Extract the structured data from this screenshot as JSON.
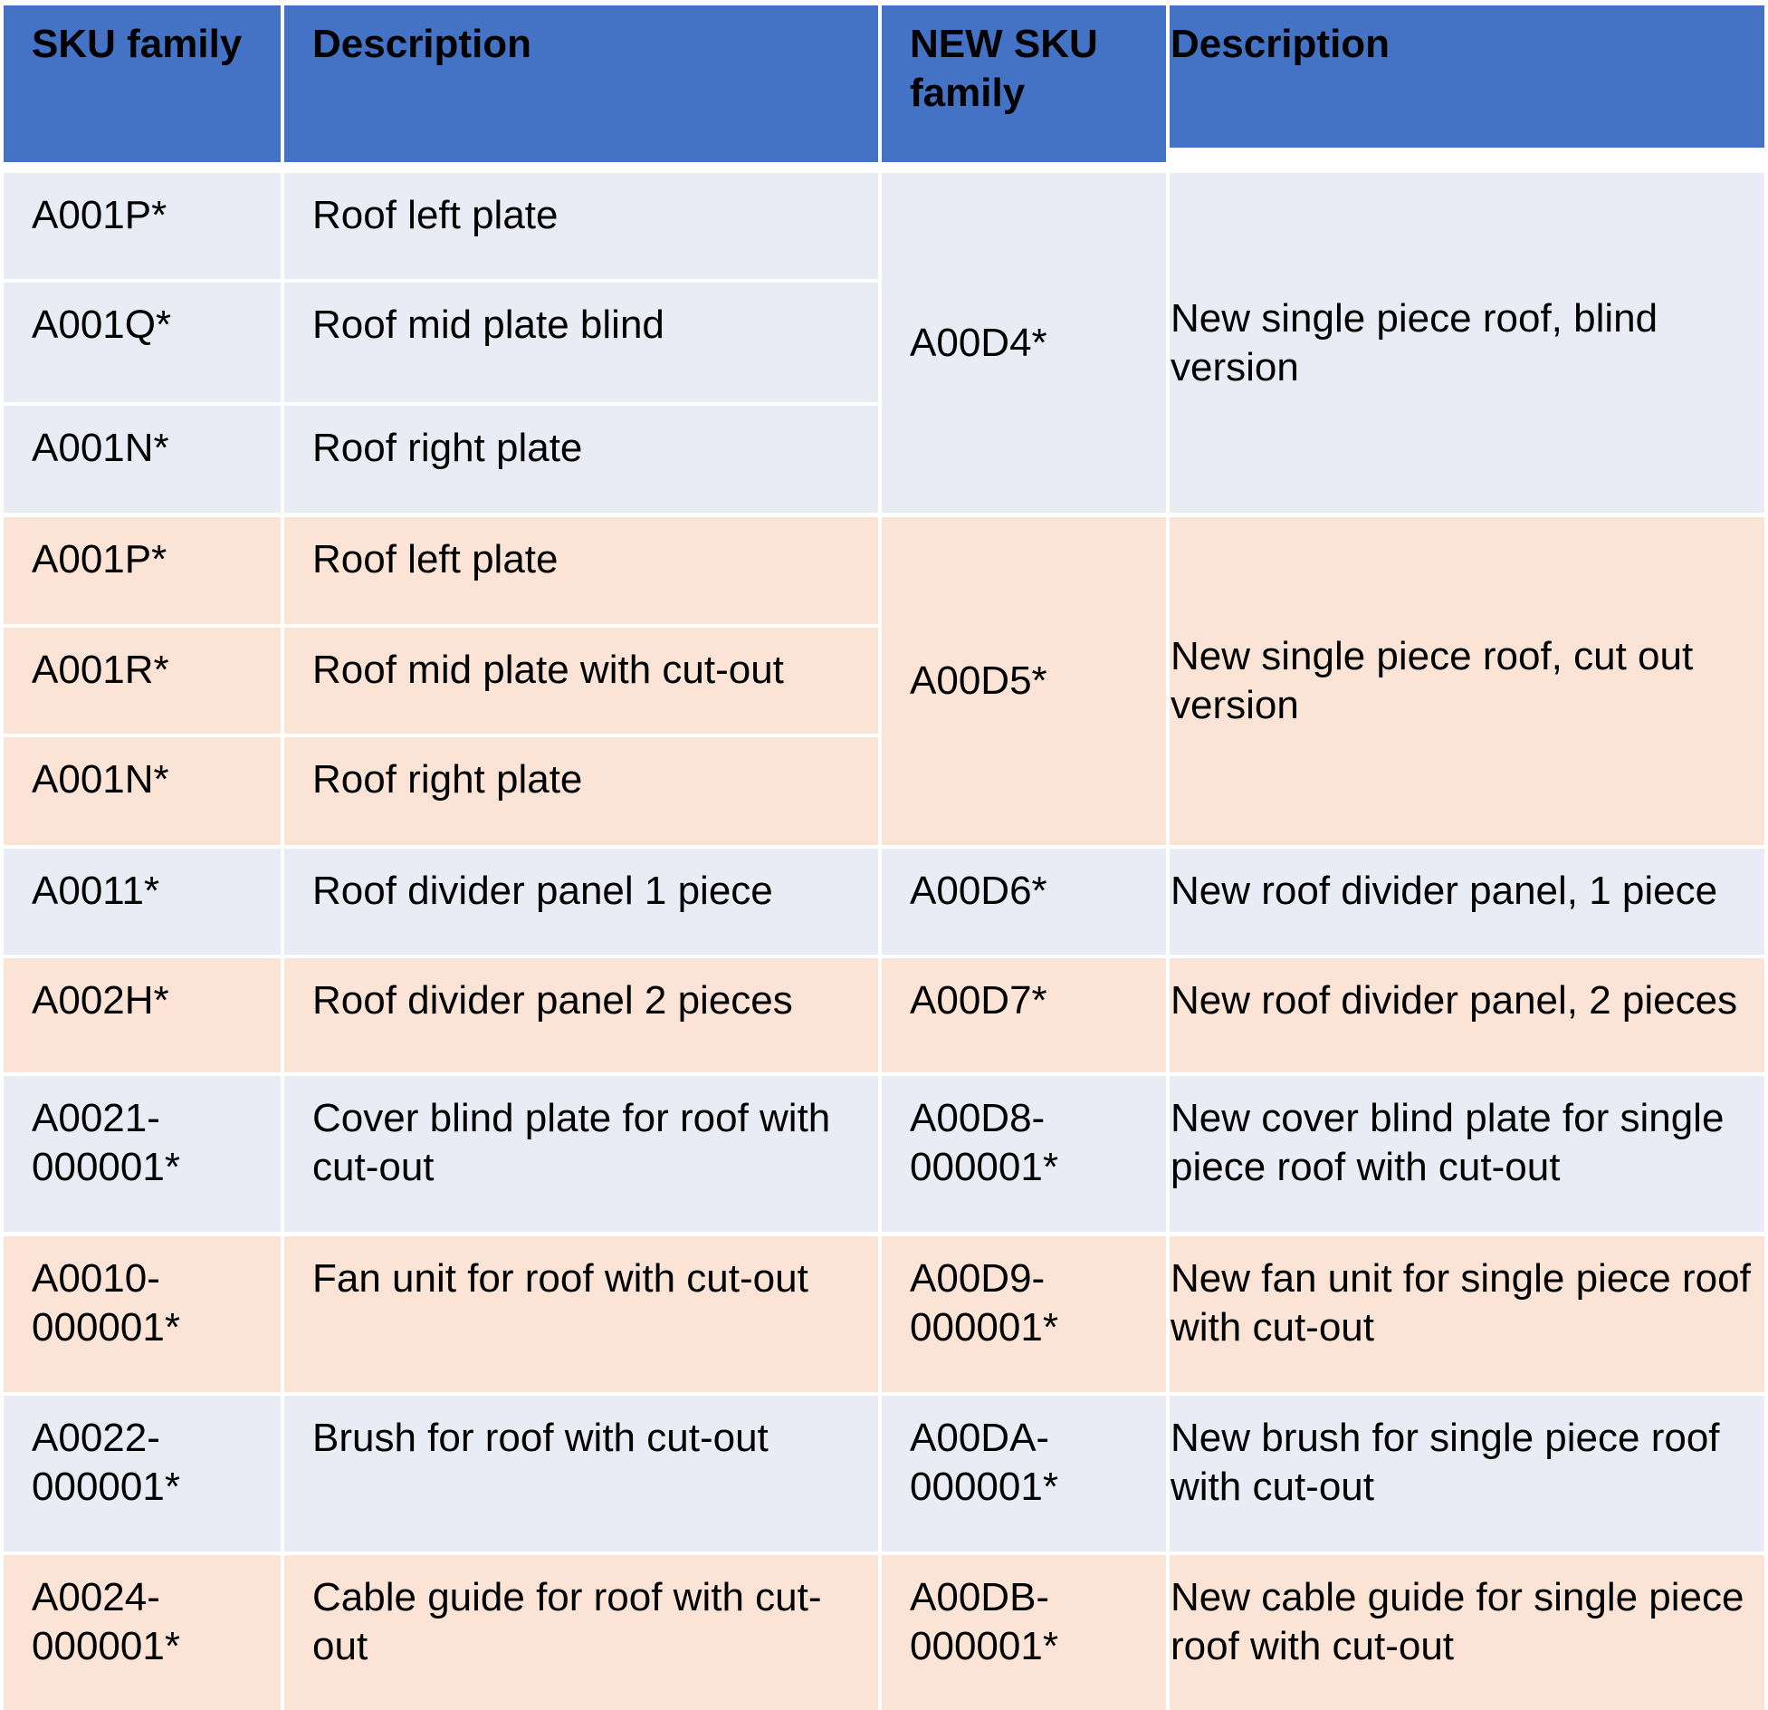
{
  "table": {
    "headers": [
      "SKU family",
      "Description",
      "NEW SKU family",
      "Description"
    ],
    "groups": [
      {
        "old": [
          {
            "sku": "A001P*",
            "description": "Roof left plate"
          },
          {
            "sku": "A001Q*",
            "description": "Roof mid plate blind"
          },
          {
            "sku": "A001N*",
            "description": "Roof right plate"
          }
        ],
        "new_sku": "A00D4*",
        "new_description": "New single piece roof, blind version"
      },
      {
        "old": [
          {
            "sku": "A001P*",
            "description": "Roof left plate"
          },
          {
            "sku": "A001R*",
            "description": "Roof mid plate with cut-out"
          },
          {
            "sku": "A001N*",
            "description": "Roof right plate"
          }
        ],
        "new_sku": "A00D5*",
        "new_description": "New single piece roof, cut out version"
      }
    ],
    "rows": [
      {
        "sku": "A0011*",
        "description": "Roof divider panel 1 piece",
        "new_sku": "A00D6*",
        "new_description": "New roof divider panel, 1 piece"
      },
      {
        "sku": "A002H*",
        "description": "Roof divider panel 2 pieces",
        "new_sku": "A00D7*",
        "new_description": "New roof divider panel, 2 pieces"
      },
      {
        "sku": "A0021-000001*",
        "description": "Cover blind plate for roof with cut-out",
        "new_sku": "A00D8-000001*",
        "new_description": "New cover blind plate for single piece roof with cut-out"
      },
      {
        "sku": "A0010-000001*",
        "description": "Fan unit for roof with cut-out",
        "new_sku": "A00D9-000001*",
        "new_description": "New fan unit for single piece roof with cut-out"
      },
      {
        "sku": "A0022-000001*",
        "description": "Brush for roof with cut-out",
        "new_sku": "A00DA-000001*",
        "new_description": "New brush for single piece roof with cut-out"
      },
      {
        "sku": "A0024-000001*",
        "description": "Cable guide for roof with cut-out",
        "new_sku": "A00DB-000001*",
        "new_description": "New cable guide for single piece roof with cut-out"
      }
    ]
  },
  "colors": {
    "header_bg": "#4472c4",
    "band_blue": "#e9ebf5",
    "band_peach": "#fbe4d5"
  }
}
